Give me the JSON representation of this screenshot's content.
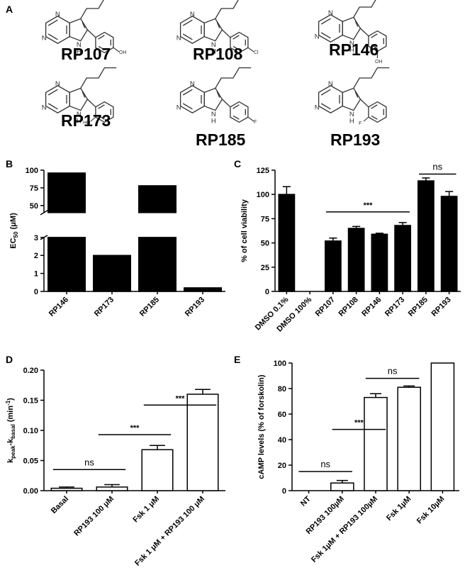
{
  "panel_a": {
    "label": "A",
    "atom_n": "N",
    "atom_h": "H",
    "compounds": [
      {
        "name": "RP107",
        "substituent": "OH"
      },
      {
        "name": "RP108",
        "substituent": "Cl"
      },
      {
        "name": "RP146",
        "substituent": "OH"
      },
      {
        "name": "RP173",
        "substituent": "HO"
      },
      {
        "name": "RP185",
        "substituent": "F"
      },
      {
        "name": "RP193",
        "substituent": "F"
      }
    ]
  },
  "chart_data": [
    {
      "type": "bar",
      "panel": "B",
      "y_label": [
        {
          "text": "EC"
        },
        {
          "text": "50",
          "shift": "sub"
        },
        {
          "text": " (μM)"
        }
      ],
      "categories": [
        "RP146",
        "RP173",
        "RP185",
        "RP193"
      ],
      "values": [
        96,
        2.0,
        78,
        0.2
      ],
      "color": "#000000",
      "ylim": [
        [
          0,
          3
        ],
        [
          40,
          100
        ]
      ],
      "yticks": [
        0,
        1,
        2,
        3,
        50,
        75,
        100
      ]
    },
    {
      "type": "bar",
      "panel": "C",
      "y_label": [
        {
          "text": "% of cell viability"
        }
      ],
      "categories": [
        "DMSO 0.1%",
        "DMSO 100%",
        "RP107",
        "RP108",
        "RP146",
        "RP173",
        "RP185",
        "RP193"
      ],
      "values": [
        100,
        0,
        52,
        65,
        59,
        68,
        114,
        98
      ],
      "errors": [
        8,
        null,
        3,
        2,
        1,
        3,
        3,
        5
      ],
      "color": "#000000",
      "ylim": [
        0,
        125
      ],
      "yticks": [
        0,
        25,
        50,
        75,
        100,
        125
      ],
      "annotations": [
        {
          "text": "***",
          "from": 2,
          "to": 5,
          "y": 82
        },
        {
          "text": "ns",
          "from": 6,
          "to": 7,
          "y": 121
        }
      ]
    },
    {
      "type": "bar",
      "panel": "D",
      "y_label": [
        {
          "text": "k"
        },
        {
          "text": "peak",
          "shift": "sub"
        },
        {
          "text": "-k"
        },
        {
          "text": "basal",
          "shift": "sub"
        },
        {
          "text": " (min"
        },
        {
          "text": "-1",
          "shift": "sup"
        },
        {
          "text": ")"
        }
      ],
      "categories": [
        "Basal",
        "RP193 100 μM",
        "Fsk 1 μM",
        "Fsk 1 μM + RP193 100 μM"
      ],
      "values": [
        0.004,
        0.006,
        0.068,
        0.16
      ],
      "errors": [
        0.002,
        0.004,
        0.007,
        0.008
      ],
      "color": "#ffffff",
      "ylim": [
        0,
        0.2
      ],
      "yticks": [
        {
          "value": 0,
          "label": "0.00"
        },
        {
          "value": 0.05,
          "label": "0.05"
        },
        {
          "value": 0.1,
          "label": "0.10"
        },
        {
          "value": 0.15,
          "label": "0.15"
        },
        {
          "value": 0.2,
          "label": "0.20"
        }
      ],
      "annotations": [
        {
          "text": "ns",
          "from": 0,
          "to": 1,
          "y": 0.035
        },
        {
          "text": "***",
          "from": 1,
          "to": 2,
          "y": 0.093
        },
        {
          "text": "***",
          "from": 2,
          "to": 3,
          "y": 0.142
        }
      ]
    },
    {
      "type": "bar",
      "panel": "E",
      "y_label": [
        {
          "text": "cAMP levels (% of forskolin)"
        }
      ],
      "categories": [
        "NT",
        "RP193 100µM",
        "Fsk 1µM + RP193 100µM",
        "Fsk 1µM",
        "Fsk 10µM"
      ],
      "values": [
        0,
        6,
        73,
        81,
        100
      ],
      "errors": [
        null,
        2,
        3,
        1,
        null
      ],
      "color": "#ffffff",
      "ylim": [
        0,
        100
      ],
      "yticks": [
        0,
        20,
        40,
        60,
        80,
        100
      ],
      "annotations": [
        {
          "text": "ns",
          "from": 0,
          "to": 1,
          "y": 15
        },
        {
          "text": "***",
          "from": 1,
          "to": 2,
          "y": 48
        },
        {
          "text": "ns",
          "from": 2,
          "to": 3,
          "y": 88
        }
      ]
    }
  ]
}
